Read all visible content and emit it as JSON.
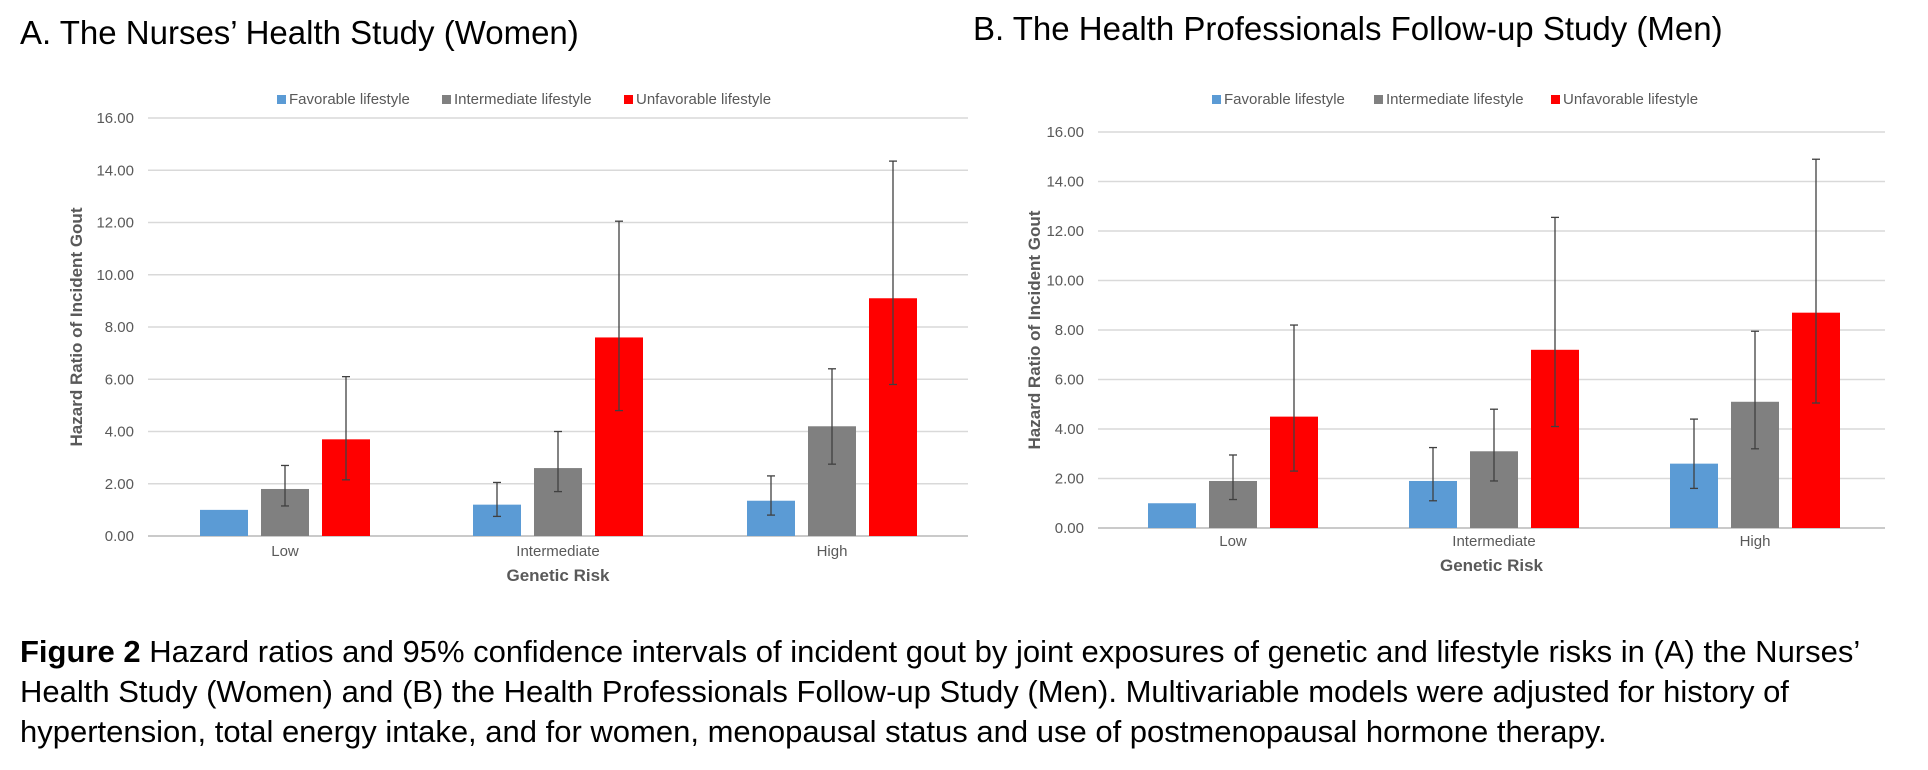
{
  "caption": {
    "label": "Figure 2",
    "text": " Hazard ratios and 95% confidence intervals of incident gout by joint exposures of genetic and lifestyle risks in (A) the Nurses’ Health Study (Women) and (B) the Health Professionals Follow-up Study (Men). Multivariable models were adjusted for history of hypertension, total energy intake, and for women, menopausal status and use of postmenopausal hormone therapy."
  },
  "chart_data": [
    {
      "type": "bar",
      "title": "A. The Nurses’ Health Study (Women)",
      "xlabel": "Genetic Risk",
      "ylabel": "Hazard Ratio of Incident Gout",
      "categories": [
        "Low",
        "Intermediate",
        "High"
      ],
      "ylim": [
        0,
        16
      ],
      "yticks": [
        "0.00",
        "2.00",
        "4.00",
        "6.00",
        "8.00",
        "10.00",
        "12.00",
        "14.00",
        "16.00"
      ],
      "grid": true,
      "legend": "top-center",
      "series": [
        {
          "name": "Favorable lifestyle",
          "color": "#5b9bd5",
          "values": [
            1.0,
            1.2,
            1.35
          ],
          "ci_low": [
            null,
            0.75,
            0.8
          ],
          "ci_high": [
            null,
            2.05,
            2.3
          ]
        },
        {
          "name": "Intermediate lifestyle",
          "color": "#808080",
          "values": [
            1.8,
            2.6,
            4.2
          ],
          "ci_low": [
            1.15,
            1.7,
            2.75
          ],
          "ci_high": [
            2.7,
            4.0,
            6.4
          ]
        },
        {
          "name": "Unfavorable lifestyle",
          "color": "#ff0000",
          "values": [
            3.7,
            7.6,
            9.1
          ],
          "ci_low": [
            2.15,
            4.8,
            5.8
          ],
          "ci_high": [
            6.1,
            12.05,
            14.35
          ]
        }
      ]
    },
    {
      "type": "bar",
      "title": "B. The Health Professionals Follow-up Study (Men)",
      "xlabel": "Genetic Risk",
      "ylabel": "Hazard Ratio of Incident Gout",
      "categories": [
        "Low",
        "Intermediate",
        "High"
      ],
      "ylim": [
        0,
        16
      ],
      "yticks": [
        "0.00",
        "2.00",
        "4.00",
        "6.00",
        "8.00",
        "10.00",
        "12.00",
        "14.00",
        "16.00"
      ],
      "grid": true,
      "legend": "top-center",
      "series": [
        {
          "name": "Favorable lifestyle",
          "color": "#5b9bd5",
          "values": [
            1.0,
            1.9,
            2.6
          ],
          "ci_low": [
            null,
            1.1,
            1.6
          ],
          "ci_high": [
            null,
            3.25,
            4.4
          ]
        },
        {
          "name": "Intermediate lifestyle",
          "color": "#808080",
          "values": [
            1.9,
            3.1,
            5.1
          ],
          "ci_low": [
            1.15,
            1.9,
            3.2
          ],
          "ci_high": [
            2.95,
            4.8,
            7.95
          ]
        },
        {
          "name": "Unfavorable lifestyle",
          "color": "#ff0000",
          "values": [
            4.5,
            7.2,
            8.7
          ],
          "ci_low": [
            2.3,
            4.1,
            5.05
          ],
          "ci_high": [
            8.2,
            12.55,
            14.9
          ]
        }
      ]
    }
  ]
}
